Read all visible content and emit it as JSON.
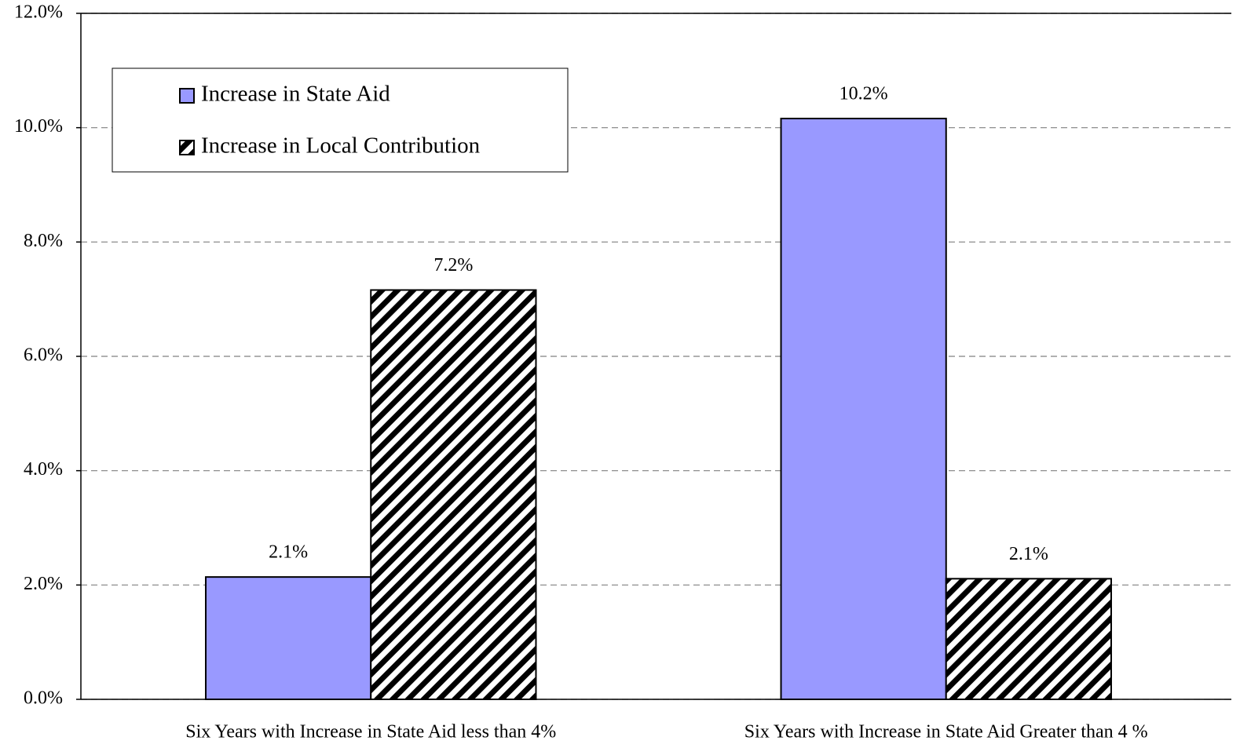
{
  "chart_data": {
    "type": "bar",
    "categories": [
      "Six Years with Increase in State Aid less than 4%",
      "Six Years with Increase in State Aid Greater than 4 %"
    ],
    "series": [
      {
        "name": "Increase in State Aid",
        "color": "#9999ff",
        "values": [
          2.14,
          10.16
        ],
        "value_labels": [
          "2.1%",
          "10.2%"
        ]
      },
      {
        "name": "Increase in Local Contribution",
        "color": "#000000",
        "pattern": "diagonal-hatch",
        "values": [
          7.16,
          2.11
        ],
        "value_labels": [
          "7.2%",
          "2.1%"
        ]
      }
    ],
    "ylim": [
      0,
      12
    ],
    "yticks": [
      {
        "value": 0,
        "label": "0.0%"
      },
      {
        "value": 2,
        "label": "2.0%"
      },
      {
        "value": 4,
        "label": "4.0%"
      },
      {
        "value": 6,
        "label": "6.0%"
      },
      {
        "value": 8,
        "label": "8.0%"
      },
      {
        "value": 10,
        "label": "10.0%"
      },
      {
        "value": 12,
        "label": "12.0%"
      }
    ],
    "grid": true,
    "legend": "upper-left"
  }
}
